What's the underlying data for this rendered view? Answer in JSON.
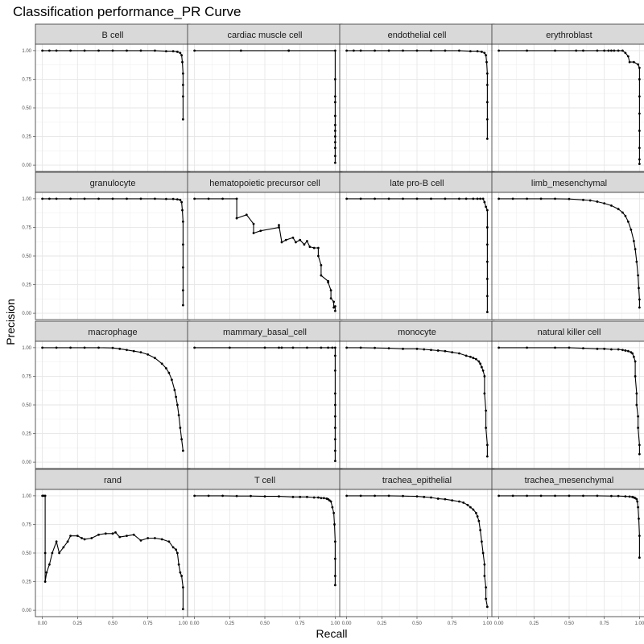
{
  "chart_data": {
    "type": "line",
    "title": "Classification performance_PR Curve",
    "xlabel": "Recall",
    "ylabel": "Precision",
    "xlim": [
      0,
      1
    ],
    "ylim": [
      0,
      1
    ],
    "x_ticks": [
      "0.00",
      "0.25",
      "0.50",
      "0.75",
      "1.00"
    ],
    "y_ticks": [
      "0.00",
      "0.25",
      "0.50",
      "0.75",
      "1.00"
    ],
    "grid": true,
    "layout": "facet grid 4x4",
    "line_color": "#000000",
    "strip_fill": "#d9d9d9",
    "panels": [
      {
        "name": "B cell",
        "x": [
          0.0,
          0.05,
          0.1,
          0.2,
          0.3,
          0.4,
          0.5,
          0.6,
          0.7,
          0.8,
          0.88,
          0.93,
          0.96,
          0.98,
          0.99,
          0.995,
          1.0,
          1.0,
          1.0,
          1.0
        ],
        "y": [
          1.0,
          1.0,
          1.0,
          1.0,
          1.0,
          1.0,
          1.0,
          1.0,
          1.0,
          1.0,
          0.995,
          0.995,
          0.99,
          0.98,
          0.96,
          0.9,
          0.8,
          0.7,
          0.6,
          0.4
        ]
      },
      {
        "name": "cardiac muscle cell",
        "x": [
          0.0,
          0.33,
          0.67,
          0.67,
          1.0,
          1.0,
          1.0,
          1.0,
          1.0,
          1.0,
          1.0,
          1.0,
          1.0,
          1.0,
          1.0,
          1.0
        ],
        "y": [
          1.0,
          1.0,
          1.0,
          1.0,
          1.0,
          0.75,
          0.6,
          0.55,
          0.43,
          0.35,
          0.3,
          0.25,
          0.2,
          0.15,
          0.08,
          0.02
        ]
      },
      {
        "name": "endothelial cell",
        "x": [
          0.0,
          0.05,
          0.1,
          0.2,
          0.3,
          0.4,
          0.5,
          0.6,
          0.7,
          0.8,
          0.88,
          0.93,
          0.96,
          0.98,
          0.99,
          0.995,
          1.0,
          1.0,
          1.0,
          1.0,
          1.0
        ],
        "y": [
          1.0,
          1.0,
          1.0,
          1.0,
          1.0,
          1.0,
          1.0,
          1.0,
          1.0,
          1.0,
          0.995,
          0.995,
          0.99,
          0.98,
          0.96,
          0.9,
          0.8,
          0.7,
          0.55,
          0.4,
          0.23
        ]
      },
      {
        "name": "erythroblast",
        "x": [
          0.0,
          0.2,
          0.4,
          0.55,
          0.6,
          0.7,
          0.75,
          0.78,
          0.8,
          0.82,
          0.85,
          0.88,
          0.9,
          0.92,
          0.93,
          0.96,
          0.99,
          1.0,
          1.0,
          1.0,
          1.0,
          1.0,
          1.0,
          1.0,
          1.0
        ],
        "y": [
          1.0,
          1.0,
          1.0,
          1.0,
          1.0,
          1.0,
          1.0,
          1.0,
          1.0,
          1.0,
          1.0,
          1.0,
          0.98,
          0.95,
          0.9,
          0.9,
          0.88,
          0.85,
          0.75,
          0.6,
          0.45,
          0.3,
          0.15,
          0.05,
          0.01
        ]
      },
      {
        "name": "granulocyte",
        "x": [
          0.0,
          0.05,
          0.1,
          0.2,
          0.3,
          0.4,
          0.5,
          0.6,
          0.7,
          0.8,
          0.88,
          0.93,
          0.96,
          0.98,
          0.99,
          0.995,
          1.0,
          1.0,
          1.0,
          1.0,
          1.0
        ],
        "y": [
          1.0,
          1.0,
          1.0,
          1.0,
          1.0,
          1.0,
          1.0,
          1.0,
          1.0,
          1.0,
          0.998,
          0.998,
          0.995,
          0.99,
          0.97,
          0.9,
          0.8,
          0.6,
          0.4,
          0.2,
          0.07
        ]
      },
      {
        "name": "hematopoietic precursor cell",
        "x": [
          0.0,
          0.1,
          0.2,
          0.3,
          0.3,
          0.37,
          0.42,
          0.42,
          0.47,
          0.6,
          0.6,
          0.62,
          0.65,
          0.7,
          0.72,
          0.75,
          0.78,
          0.8,
          0.82,
          0.85,
          0.88,
          0.88,
          0.9,
          0.9,
          0.95,
          0.95,
          0.97,
          0.97,
          0.99,
          0.99,
          1.0,
          1.0
        ],
        "y": [
          1.0,
          1.0,
          1.0,
          1.0,
          0.83,
          0.86,
          0.78,
          0.7,
          0.72,
          0.75,
          0.77,
          0.62,
          0.64,
          0.66,
          0.62,
          0.64,
          0.6,
          0.63,
          0.58,
          0.57,
          0.57,
          0.5,
          0.42,
          0.33,
          0.28,
          0.27,
          0.2,
          0.13,
          0.1,
          0.05,
          0.06,
          0.02
        ]
      },
      {
        "name": "late pro-B cell",
        "x": [
          0.0,
          0.1,
          0.2,
          0.3,
          0.4,
          0.5,
          0.6,
          0.7,
          0.8,
          0.85,
          0.9,
          0.93,
          0.95,
          0.97,
          0.98,
          0.99,
          1.0,
          1.0,
          1.0,
          1.0,
          1.0,
          1.0,
          1.0
        ],
        "y": [
          1.0,
          1.0,
          1.0,
          1.0,
          1.0,
          1.0,
          1.0,
          1.0,
          1.0,
          1.0,
          1.0,
          1.0,
          1.0,
          1.0,
          0.97,
          0.93,
          0.9,
          0.75,
          0.6,
          0.45,
          0.3,
          0.15,
          0.01
        ]
      },
      {
        "name": "limb_mesenchymal",
        "x": [
          0.0,
          0.1,
          0.2,
          0.3,
          0.4,
          0.5,
          0.6,
          0.65,
          0.7,
          0.75,
          0.8,
          0.85,
          0.88,
          0.9,
          0.92,
          0.94,
          0.96,
          0.97,
          0.98,
          0.99,
          0.995,
          1.0,
          1.0
        ],
        "y": [
          1.0,
          1.0,
          1.0,
          1.0,
          1.0,
          0.998,
          0.99,
          0.985,
          0.975,
          0.96,
          0.94,
          0.91,
          0.88,
          0.85,
          0.8,
          0.73,
          0.63,
          0.56,
          0.45,
          0.33,
          0.22,
          0.12,
          0.05
        ]
      },
      {
        "name": "macrophage",
        "x": [
          0.0,
          0.1,
          0.2,
          0.3,
          0.4,
          0.5,
          0.55,
          0.6,
          0.65,
          0.7,
          0.75,
          0.8,
          0.85,
          0.88,
          0.9,
          0.92,
          0.94,
          0.95,
          0.96,
          0.97,
          0.98,
          0.99,
          1.0
        ],
        "y": [
          1.0,
          1.0,
          1.0,
          1.0,
          1.0,
          0.998,
          0.99,
          0.98,
          0.97,
          0.96,
          0.94,
          0.91,
          0.86,
          0.82,
          0.78,
          0.72,
          0.63,
          0.57,
          0.5,
          0.41,
          0.3,
          0.2,
          0.1
        ]
      },
      {
        "name": "mammary_basal_cell",
        "x": [
          0.0,
          0.25,
          0.5,
          0.6,
          0.62,
          0.7,
          0.8,
          0.9,
          0.95,
          0.98,
          1.0,
          1.0,
          1.0,
          1.0,
          1.0,
          1.0,
          1.0,
          1.0,
          1.0,
          1.0
        ],
        "y": [
          1.0,
          1.0,
          1.0,
          1.0,
          1.0,
          1.0,
          1.0,
          1.0,
          1.0,
          1.0,
          1.0,
          0.93,
          0.8,
          0.6,
          0.5,
          0.4,
          0.3,
          0.2,
          0.1,
          0.01
        ]
      },
      {
        "name": "monocyte",
        "x": [
          0.0,
          0.1,
          0.2,
          0.3,
          0.4,
          0.5,
          0.55,
          0.6,
          0.65,
          0.7,
          0.75,
          0.8,
          0.85,
          0.88,
          0.9,
          0.92,
          0.94,
          0.95,
          0.96,
          0.97,
          0.98,
          0.98,
          0.99,
          0.99,
          1.0,
          1.0
        ],
        "y": [
          1.0,
          1.0,
          0.998,
          0.995,
          0.99,
          0.99,
          0.985,
          0.98,
          0.975,
          0.97,
          0.96,
          0.95,
          0.93,
          0.92,
          0.91,
          0.9,
          0.88,
          0.86,
          0.83,
          0.8,
          0.75,
          0.6,
          0.45,
          0.3,
          0.15,
          0.05
        ]
      },
      {
        "name": "natural killer cell",
        "x": [
          0.0,
          0.2,
          0.4,
          0.5,
          0.6,
          0.7,
          0.75,
          0.8,
          0.85,
          0.88,
          0.9,
          0.92,
          0.94,
          0.95,
          0.96,
          0.97,
          0.97,
          0.98,
          0.98,
          0.99,
          0.99,
          1.0,
          1.0
        ],
        "y": [
          1.0,
          1.0,
          1.0,
          1.0,
          0.995,
          0.99,
          0.99,
          0.985,
          0.985,
          0.98,
          0.975,
          0.97,
          0.96,
          0.95,
          0.92,
          0.88,
          0.75,
          0.6,
          0.5,
          0.4,
          0.3,
          0.15,
          0.07
        ]
      },
      {
        "name": "rand",
        "x": [
          0.0,
          0.01,
          0.02,
          0.02,
          0.02,
          0.03,
          0.05,
          0.07,
          0.1,
          0.12,
          0.15,
          0.18,
          0.2,
          0.25,
          0.28,
          0.3,
          0.35,
          0.4,
          0.45,
          0.5,
          0.52,
          0.55,
          0.6,
          0.65,
          0.7,
          0.75,
          0.8,
          0.85,
          0.9,
          0.93,
          0.95,
          0.96,
          0.97,
          0.98,
          0.99,
          1.0,
          1.0
        ],
        "y": [
          1.0,
          1.0,
          1.0,
          0.5,
          0.25,
          0.33,
          0.4,
          0.5,
          0.6,
          0.5,
          0.55,
          0.6,
          0.65,
          0.65,
          0.63,
          0.62,
          0.63,
          0.66,
          0.67,
          0.67,
          0.68,
          0.64,
          0.65,
          0.66,
          0.61,
          0.63,
          0.63,
          0.62,
          0.6,
          0.55,
          0.53,
          0.5,
          0.4,
          0.33,
          0.3,
          0.2,
          0.01
        ]
      },
      {
        "name": "T cell",
        "x": [
          0.0,
          0.1,
          0.2,
          0.3,
          0.4,
          0.5,
          0.6,
          0.7,
          0.75,
          0.8,
          0.85,
          0.88,
          0.9,
          0.92,
          0.94,
          0.95,
          0.96,
          0.97,
          0.98,
          0.99,
          0.995,
          1.0,
          1.0,
          1.0,
          1.0
        ],
        "y": [
          1.0,
          1.0,
          1.0,
          0.998,
          0.998,
          0.995,
          0.995,
          0.99,
          0.99,
          0.99,
          0.985,
          0.985,
          0.98,
          0.98,
          0.975,
          0.97,
          0.96,
          0.95,
          0.9,
          0.85,
          0.75,
          0.6,
          0.45,
          0.3,
          0.22
        ]
      },
      {
        "name": "trachea_epithelial",
        "x": [
          0.0,
          0.1,
          0.2,
          0.3,
          0.4,
          0.5,
          0.55,
          0.6,
          0.65,
          0.7,
          0.75,
          0.8,
          0.83,
          0.86,
          0.88,
          0.9,
          0.92,
          0.93,
          0.94,
          0.95,
          0.96,
          0.97,
          0.98,
          0.98,
          0.99,
          0.99,
          1.0
        ],
        "y": [
          1.0,
          1.0,
          1.0,
          1.0,
          0.998,
          0.995,
          0.99,
          0.985,
          0.975,
          0.97,
          0.96,
          0.95,
          0.94,
          0.92,
          0.9,
          0.88,
          0.85,
          0.82,
          0.78,
          0.7,
          0.6,
          0.5,
          0.4,
          0.3,
          0.2,
          0.1,
          0.03
        ]
      },
      {
        "name": "trachea_mesenchymal",
        "x": [
          0.0,
          0.1,
          0.2,
          0.3,
          0.4,
          0.5,
          0.6,
          0.7,
          0.8,
          0.85,
          0.9,
          0.93,
          0.95,
          0.96,
          0.97,
          0.98,
          0.985,
          0.99,
          0.995,
          1.0,
          1.0
        ],
        "y": [
          1.0,
          1.0,
          1.0,
          1.0,
          1.0,
          1.0,
          1.0,
          1.0,
          0.998,
          0.998,
          0.995,
          0.993,
          0.99,
          0.985,
          0.98,
          0.97,
          0.95,
          0.9,
          0.8,
          0.65,
          0.46
        ]
      }
    ]
  }
}
